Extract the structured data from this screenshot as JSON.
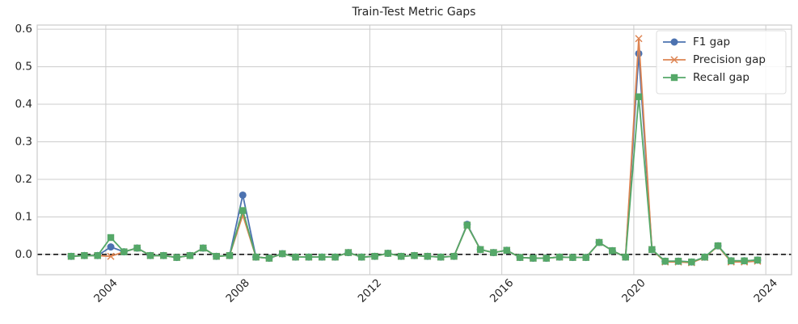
{
  "chart_data": {
    "type": "line",
    "title": "Train-Test Metric Gaps",
    "x": [
      2002.95,
      2003.35,
      2003.75,
      2004.15,
      2004.55,
      2004.95,
      2005.35,
      2005.75,
      2006.15,
      2006.55,
      2006.95,
      2007.35,
      2007.75,
      2008.15,
      2008.55,
      2008.95,
      2009.35,
      2009.75,
      2010.15,
      2010.55,
      2010.95,
      2011.35,
      2011.75,
      2012.15,
      2012.55,
      2012.95,
      2013.35,
      2013.75,
      2014.15,
      2014.55,
      2014.95,
      2015.35,
      2015.75,
      2016.15,
      2016.55,
      2016.95,
      2017.35,
      2017.75,
      2018.15,
      2018.55,
      2018.95,
      2019.35,
      2019.75,
      2020.15,
      2020.55,
      2020.95,
      2021.35,
      2021.75,
      2022.15,
      2022.55,
      2022.95,
      2023.35,
      2023.75
    ],
    "series": [
      {
        "name": "F1 gap",
        "color": "#4c72b0",
        "marker": "circle",
        "values": [
          -0.005,
          -0.003,
          -0.003,
          0.02,
          0.007,
          0.017,
          -0.003,
          -0.003,
          -0.008,
          -0.003,
          0.017,
          -0.005,
          -0.003,
          0.158,
          -0.007,
          -0.01,
          0.002,
          -0.007,
          -0.007,
          -0.007,
          -0.007,
          0.005,
          -0.007,
          -0.005,
          0.003,
          -0.005,
          -0.003,
          -0.005,
          -0.007,
          -0.005,
          0.08,
          0.013,
          0.005,
          0.011,
          -0.008,
          -0.01,
          -0.01,
          -0.007,
          -0.008,
          -0.008,
          0.032,
          0.01,
          -0.007,
          0.535,
          0.013,
          -0.018,
          -0.018,
          -0.02,
          -0.007,
          0.023,
          -0.017,
          -0.017,
          -0.015
        ]
      },
      {
        "name": "Precision gap",
        "color": "#dd8452",
        "marker": "x",
        "values": [
          -0.005,
          -0.003,
          -0.003,
          -0.005,
          0.007,
          0.017,
          -0.003,
          -0.003,
          -0.008,
          -0.003,
          0.017,
          -0.005,
          -0.003,
          0.105,
          -0.007,
          -0.01,
          0.002,
          -0.007,
          -0.007,
          -0.007,
          -0.007,
          0.005,
          -0.007,
          -0.005,
          0.003,
          -0.005,
          -0.003,
          -0.005,
          -0.007,
          -0.005,
          0.078,
          0.013,
          0.005,
          0.011,
          -0.008,
          -0.01,
          -0.01,
          -0.007,
          -0.008,
          -0.008,
          0.032,
          0.01,
          -0.007,
          0.575,
          0.013,
          -0.02,
          -0.02,
          -0.022,
          -0.008,
          0.022,
          -0.02,
          -0.02,
          -0.018
        ]
      },
      {
        "name": "Recall gap",
        "color": "#55a868",
        "marker": "square",
        "values": [
          -0.005,
          -0.003,
          -0.003,
          0.045,
          0.007,
          0.017,
          -0.003,
          -0.003,
          -0.008,
          -0.003,
          0.017,
          -0.005,
          -0.003,
          0.117,
          -0.007,
          -0.01,
          0.002,
          -0.007,
          -0.007,
          -0.007,
          -0.007,
          0.005,
          -0.007,
          -0.005,
          0.003,
          -0.005,
          -0.003,
          -0.005,
          -0.007,
          -0.005,
          0.078,
          0.013,
          0.005,
          0.011,
          -0.008,
          -0.01,
          -0.01,
          -0.007,
          -0.008,
          -0.008,
          0.032,
          0.01,
          -0.007,
          0.42,
          0.013,
          -0.018,
          -0.018,
          -0.02,
          -0.007,
          0.023,
          -0.017,
          -0.017,
          -0.015
        ]
      }
    ],
    "reference_line": 0,
    "xlim": [
      2001.92,
      2024.78
    ],
    "xticks": [
      2004,
      2008,
      2012,
      2016,
      2020,
      2024
    ],
    "ylim": [
      -0.054,
      0.611
    ],
    "yticks": [
      0.0,
      0.1,
      0.2,
      0.3,
      0.4,
      0.5,
      0.6
    ],
    "grid": true,
    "legend": "upper right"
  }
}
